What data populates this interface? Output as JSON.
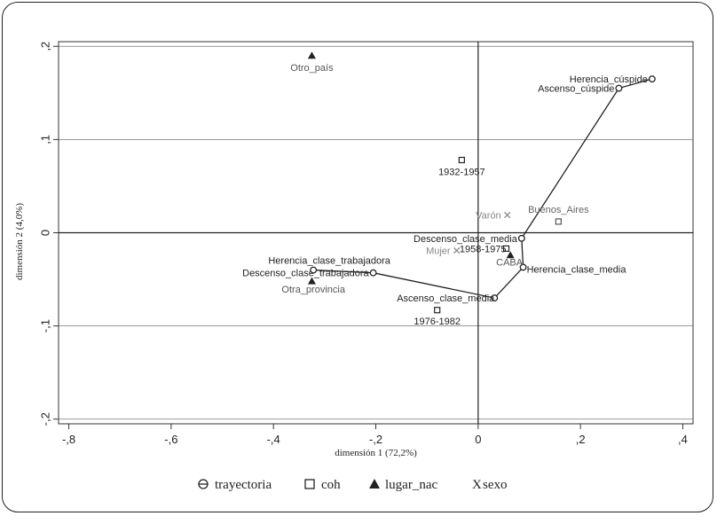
{
  "chart_data": {
    "type": "scatter",
    "xlabel": "dimensión 1 (72,2%)",
    "ylabel": "dimensión 2 (4,0%)",
    "xlim": [
      -0.82,
      0.42
    ],
    "ylim": [
      -0.205,
      0.205
    ],
    "x_ticks": [
      {
        "v": -0.8,
        "label": "-,8"
      },
      {
        "v": -0.6,
        "label": "-,6"
      },
      {
        "v": -0.4,
        "label": "-,4"
      },
      {
        "v": -0.2,
        "label": "-,2"
      },
      {
        "v": 0,
        "label": "0"
      },
      {
        "v": 0.2,
        "label": ",2"
      },
      {
        "v": 0.4,
        "label": ",4"
      }
    ],
    "y_ticks": [
      {
        "v": 0.2,
        "label": ",2"
      },
      {
        "v": 0.1,
        "label": ",1"
      },
      {
        "v": 0,
        "label": "0"
      },
      {
        "v": -0.1,
        "label": "-,1"
      },
      {
        "v": -0.2,
        "label": "-,2"
      }
    ],
    "legend": [
      {
        "key": "trayectoria",
        "marker": "circle-line",
        "label": "trayectoria"
      },
      {
        "key": "coh",
        "marker": "square",
        "label": "coh"
      },
      {
        "key": "lugar_nac",
        "marker": "triangle",
        "label": "lugar_nac"
      },
      {
        "key": "sexo",
        "marker": "x",
        "label": "sexo"
      }
    ],
    "series": [
      {
        "name": "trayectoria",
        "color": "#222222",
        "connected": true,
        "points": [
          {
            "label": "Herencia_cúspide",
            "x": 0.34,
            "y": 0.165,
            "anchor": "end",
            "dx": -5,
            "dy": 4
          },
          {
            "label": "Ascenso_cúspide",
            "x": 0.275,
            "y": 0.155,
            "anchor": "end",
            "dx": -5,
            "dy": 4
          },
          {
            "label": "Descenso_clase_media",
            "x": 0.085,
            "y": -0.006,
            "anchor": "end",
            "dx": -5,
            "dy": 4
          },
          {
            "label": "Herencia_clase_media",
            "x": 0.088,
            "y": -0.037,
            "anchor": "start",
            "dx": 4,
            "dy": 6
          },
          {
            "label": "Ascenso_clase_media",
            "x": 0.032,
            "y": -0.07,
            "anchor": "end",
            "dx": 0,
            "dy": 4
          },
          {
            "label": "Descenso_clase_trabajadora",
            "x": -0.205,
            "y": -0.043,
            "anchor": "end",
            "dx": -5,
            "dy": 4
          },
          {
            "label": "Herencia_clase_trabajadora",
            "x": -0.322,
            "y": -0.04,
            "anchor": "middle",
            "dx": 18,
            "dy": -7
          }
        ]
      },
      {
        "name": "coh",
        "color": "#222222",
        "connected": false,
        "points": [
          {
            "label": "1932-1957",
            "x": -0.032,
            "y": 0.078,
            "anchor": "middle",
            "dx": 0,
            "dy": 17
          },
          {
            "label": "1958-1975",
            "x": 0.055,
            "y": -0.017,
            "anchor": "end",
            "dx": 0,
            "dy": 4
          },
          {
            "label": "1976-1982",
            "x": -0.08,
            "y": -0.083,
            "anchor": "middle",
            "dx": 0,
            "dy": 16
          }
        ]
      },
      {
        "name": "lugar_nac",
        "color": "#222222",
        "connected": false,
        "points": [
          {
            "label": "Otro_país",
            "x": -0.325,
            "y": 0.19,
            "anchor": "middle",
            "dx": 0,
            "dy": 17,
            "color": "#555555"
          },
          {
            "label": "CABA",
            "x": 0.063,
            "y": -0.024,
            "anchor": "middle",
            "dx": -1,
            "dy": 12,
            "color": "#555555"
          },
          {
            "label": "Otra_provincia",
            "x": -0.325,
            "y": -0.052,
            "anchor": "start",
            "dx": -34,
            "dy": 13,
            "color": "#555555"
          }
        ]
      },
      {
        "name": "buenos_aires",
        "color": "#555555",
        "connected": false,
        "marker": "square",
        "points": [
          {
            "label": "Buenos_Aires",
            "x": 0.157,
            "y": 0.012,
            "anchor": "middle",
            "dx": 0,
            "dy": -10,
            "color": "#666666"
          }
        ]
      },
      {
        "name": "sexo",
        "color": "#888888",
        "connected": false,
        "points": [
          {
            "label": "Varón",
            "x": 0.057,
            "y": 0.019,
            "anchor": "end",
            "dx": -7,
            "dy": 4,
            "color": "#888888"
          },
          {
            "label": "Mujer",
            "x": -0.042,
            "y": -0.019,
            "anchor": "end",
            "dx": -7,
            "dy": 4,
            "color": "#888888"
          }
        ]
      }
    ]
  }
}
